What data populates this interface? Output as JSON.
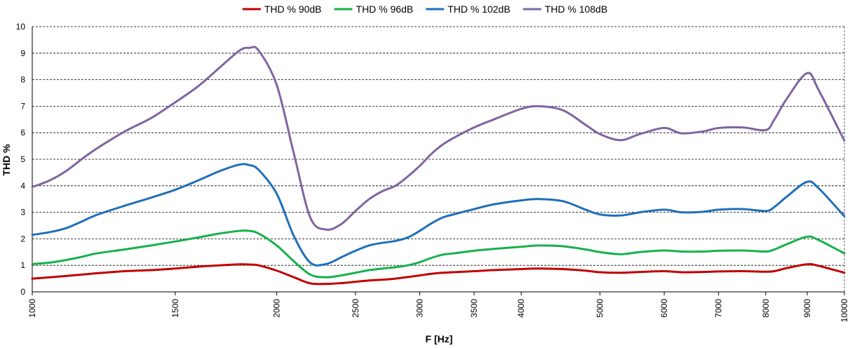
{
  "chart_data": {
    "type": "line",
    "title": "",
    "xlabel": "F [Hz]",
    "ylabel": "THD %",
    "x_scale": "log",
    "xlim": [
      1000,
      10000
    ],
    "ylim": [
      0,
      10
    ],
    "grid": "horizontal-dashed",
    "legend_position": "top",
    "x_ticks": [
      "1000",
      "1500",
      "2000",
      "2500",
      "3000",
      "3500",
      "4000",
      "5000",
      "6000",
      "7000",
      "8000",
      "9000",
      "10000"
    ],
    "y_ticks": [
      "0",
      "1",
      "2",
      "3",
      "4",
      "5",
      "6",
      "7",
      "8",
      "9",
      "10"
    ],
    "x": [
      1000,
      1050,
      1100,
      1150,
      1200,
      1300,
      1400,
      1500,
      1600,
      1700,
      1800,
      1850,
      1900,
      2000,
      2100,
      2200,
      2300,
      2400,
      2500,
      2600,
      2700,
      2800,
      2900,
      3000,
      3100,
      3200,
      3300,
      3500,
      3700,
      4000,
      4200,
      4500,
      4800,
      5000,
      5300,
      5600,
      6000,
      6300,
      6700,
      7000,
      7500,
      8000,
      8200,
      8500,
      9000,
      9300,
      10000
    ],
    "series": [
      {
        "name": "THD % 90dB",
        "color": "#C00000",
        "values": [
          0.5,
          0.55,
          0.6,
          0.65,
          0.7,
          0.78,
          0.82,
          0.88,
          0.95,
          1.0,
          1.04,
          1.03,
          1.0,
          0.8,
          0.55,
          0.32,
          0.3,
          0.33,
          0.38,
          0.43,
          0.46,
          0.5,
          0.56,
          0.62,
          0.68,
          0.72,
          0.74,
          0.78,
          0.82,
          0.86,
          0.88,
          0.86,
          0.8,
          0.74,
          0.72,
          0.75,
          0.78,
          0.74,
          0.75,
          0.77,
          0.78,
          0.76,
          0.78,
          0.9,
          1.04,
          0.98,
          0.72
        ]
      },
      {
        "name": "THD % 96dB",
        "color": "#17B14C",
        "values": [
          1.05,
          1.1,
          1.2,
          1.32,
          1.45,
          1.6,
          1.75,
          1.9,
          2.05,
          2.2,
          2.3,
          2.3,
          2.2,
          1.75,
          1.15,
          0.65,
          0.55,
          0.62,
          0.72,
          0.82,
          0.88,
          0.93,
          1.0,
          1.12,
          1.28,
          1.4,
          1.45,
          1.55,
          1.62,
          1.7,
          1.75,
          1.72,
          1.6,
          1.5,
          1.42,
          1.5,
          1.56,
          1.52,
          1.52,
          1.55,
          1.56,
          1.52,
          1.6,
          1.8,
          2.08,
          1.95,
          1.45
        ]
      },
      {
        "name": "THD % 102dB",
        "color": "#1F6FB8",
        "values": [
          2.15,
          2.25,
          2.4,
          2.65,
          2.9,
          3.25,
          3.55,
          3.85,
          4.2,
          4.55,
          4.8,
          4.78,
          4.6,
          3.7,
          2.1,
          1.1,
          1.05,
          1.3,
          1.55,
          1.75,
          1.85,
          1.92,
          2.05,
          2.3,
          2.58,
          2.8,
          2.92,
          3.12,
          3.3,
          3.45,
          3.5,
          3.42,
          3.1,
          2.92,
          2.88,
          3.0,
          3.1,
          3.0,
          3.02,
          3.1,
          3.12,
          3.05,
          3.2,
          3.6,
          4.15,
          3.9,
          2.85
        ]
      },
      {
        "name": "THD % 108dB",
        "color": "#8064A2",
        "values": [
          3.95,
          4.2,
          4.55,
          5.0,
          5.4,
          6.05,
          6.55,
          7.15,
          7.75,
          8.45,
          9.1,
          9.2,
          9.1,
          7.8,
          5.2,
          2.8,
          2.35,
          2.55,
          3.05,
          3.5,
          3.8,
          4.0,
          4.35,
          4.75,
          5.2,
          5.55,
          5.8,
          6.2,
          6.5,
          6.9,
          7.0,
          6.85,
          6.3,
          5.95,
          5.72,
          5.95,
          6.18,
          5.98,
          6.05,
          6.18,
          6.2,
          6.1,
          6.5,
          7.3,
          8.25,
          7.6,
          5.7
        ]
      }
    ]
  }
}
